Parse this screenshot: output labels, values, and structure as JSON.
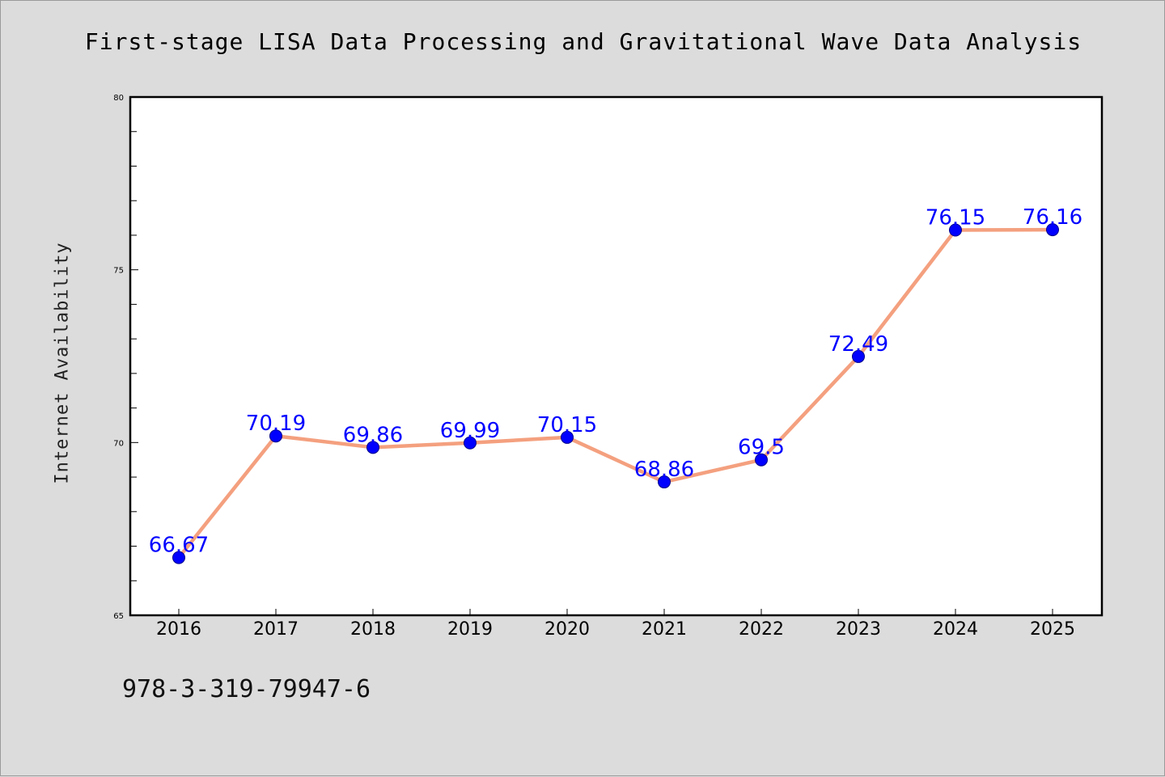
{
  "title": "First-stage LISA Data Processing and Gravitational Wave Data Analysis",
  "ylabel": "Internet Availability",
  "footer_text": "978-3-319-79947-6",
  "colors": {
    "background": "#dcdcdc",
    "plot_background": "#ffffff",
    "line": "#f4a07f",
    "marker": "#0000ff",
    "data_label": "#0000ff"
  },
  "chart_data": {
    "type": "line",
    "categories": [
      "2016",
      "2017",
      "2018",
      "2019",
      "2020",
      "2021",
      "2022",
      "2023",
      "2024",
      "2025"
    ],
    "series": [
      {
        "values": [
          66.67,
          70.19,
          69.86,
          69.99,
          70.15,
          68.86,
          69.5,
          72.49,
          76.15,
          76.16
        ],
        "data_labels": [
          "66.67",
          "70.19",
          "69.86",
          "69.99",
          "70.15",
          "68.86",
          "69.5",
          "72.49",
          "76.15",
          "76.16"
        ]
      }
    ],
    "title": "First-stage LISA Data Processing and Gravitational Wave Data Analysis",
    "xlabel": "",
    "ylabel": "Internet Availability",
    "ylim": [
      65,
      80
    ],
    "yticks": [
      "65",
      "70",
      "75",
      "80"
    ],
    "grid": false,
    "legend": "none"
  }
}
